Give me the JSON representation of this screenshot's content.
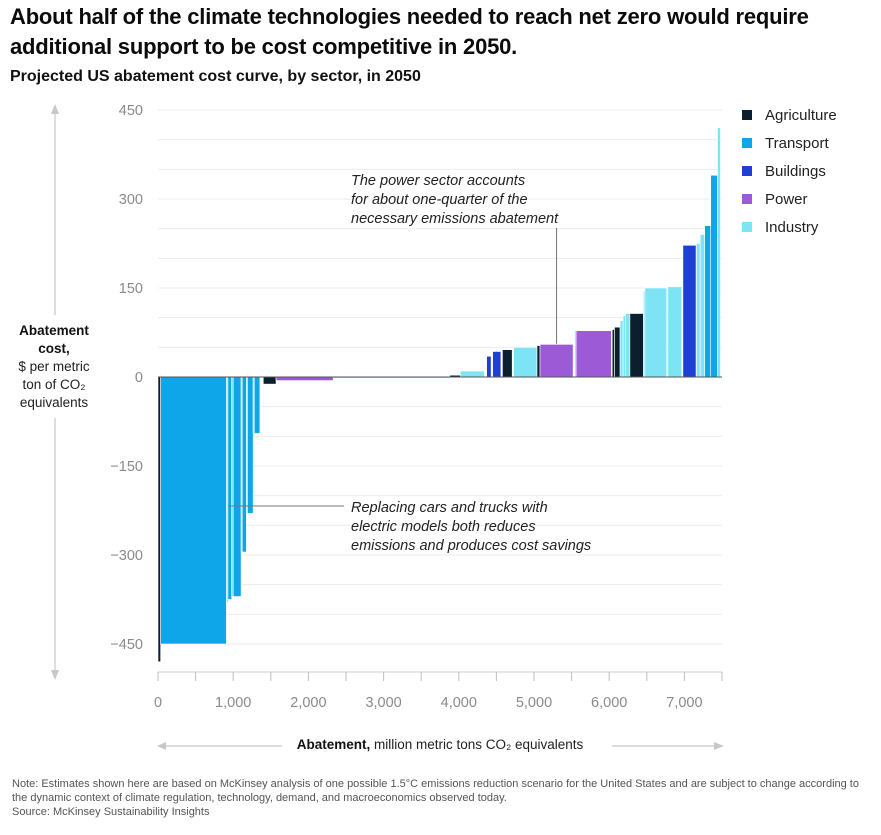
{
  "headline": "About half of the climate technologies needed to reach net zero would require additional support to be cost competitive in 2050.",
  "subtitle": "Projected US abatement cost curve, by sector, in 2050",
  "y_axis": {
    "title_bold": "Abatement cost,",
    "title_rest": "$ per metric ton of CO₂ equivalents"
  },
  "x_axis": {
    "title_bold": "Abatement,",
    "title_rest": " million metric tons CO₂ equivalents"
  },
  "note": "Note: Estimates shown here are based on McKinsey analysis of one possible 1.5°C emissions reduction scenario for the United States and are subject to change according to the dynamic context of climate regulation, technology, demand, and macroeconomics observed today.",
  "source": "Source: McKinsey Sustainability Insights",
  "colors": {
    "Agriculture": "#0b1f2e",
    "Transport": "#0ea5e9",
    "Buildings": "#1d3fd6",
    "Power": "#9c5ad6",
    "Industry": "#7de3f5"
  },
  "chart_data": {
    "type": "bar",
    "variant": "marginal-abatement-cost-curve",
    "xlim": [
      0,
      7500
    ],
    "ylim": [
      -500,
      450
    ],
    "y_ticks": [
      450,
      300,
      150,
      0,
      -150,
      -300,
      -450
    ],
    "x_ticks": [
      0,
      1000,
      2000,
      3000,
      4000,
      5000,
      6000,
      7000
    ],
    "x_tick_labels": [
      "0",
      "1,000",
      "2,000",
      "3,000",
      "4,000",
      "5,000",
      "6,000",
      "7,000"
    ],
    "y_tick_labels": [
      "450",
      "300",
      "150",
      "0",
      "−150",
      "−300",
      "−450"
    ],
    "grid": true,
    "legend": {
      "position": "top-right",
      "entries": [
        "Agriculture",
        "Transport",
        "Buildings",
        "Power",
        "Industry"
      ]
    },
    "bars": [
      {
        "sector": "Agriculture",
        "start": 0,
        "width": 35,
        "value": -480
      },
      {
        "sector": "Transport",
        "start": 35,
        "width": 875,
        "value": -450
      },
      {
        "sector": "Industry",
        "start": 910,
        "width": 20,
        "value": -380
      },
      {
        "sector": "Transport",
        "start": 930,
        "width": 50,
        "value": -375
      },
      {
        "sector": "Industry",
        "start": 980,
        "width": 20,
        "value": -370
      },
      {
        "sector": "Transport",
        "start": 1000,
        "width": 105,
        "value": -370
      },
      {
        "sector": "Industry",
        "start": 1105,
        "width": 15,
        "value": -295
      },
      {
        "sector": "Transport",
        "start": 1120,
        "width": 55,
        "value": -295
      },
      {
        "sector": "Industry",
        "start": 1175,
        "width": 15,
        "value": -230
      },
      {
        "sector": "Transport",
        "start": 1190,
        "width": 75,
        "value": -230
      },
      {
        "sector": "Industry",
        "start": 1265,
        "width": 15,
        "value": -95
      },
      {
        "sector": "Transport",
        "start": 1280,
        "width": 75,
        "value": -95
      },
      {
        "sector": "Agriculture",
        "start": 1400,
        "width": 170,
        "value": -12
      },
      {
        "sector": "Power",
        "start": 1570,
        "width": 760,
        "value": -6
      },
      {
        "sector": "Industry",
        "start": 2330,
        "width": 1550,
        "value": -2
      },
      {
        "sector": "Agriculture",
        "start": 3880,
        "width": 140,
        "value": 3
      },
      {
        "sector": "Industry",
        "start": 4020,
        "width": 320,
        "value": 10
      },
      {
        "sector": "Buildings",
        "start": 4370,
        "width": 60,
        "value": 35
      },
      {
        "sector": "Buildings",
        "start": 4450,
        "width": 110,
        "value": 43
      },
      {
        "sector": "Agriculture",
        "start": 4580,
        "width": 130,
        "value": 46
      },
      {
        "sector": "Industry",
        "start": 4730,
        "width": 310,
        "value": 50
      },
      {
        "sector": "Agriculture",
        "start": 5040,
        "width": 40,
        "value": 53
      },
      {
        "sector": "Power",
        "start": 5080,
        "width": 440,
        "value": 55
      },
      {
        "sector": "Industry",
        "start": 5540,
        "width": 20,
        "value": 78
      },
      {
        "sector": "Power",
        "start": 5560,
        "width": 470,
        "value": 78
      },
      {
        "sector": "Agriculture",
        "start": 6040,
        "width": 30,
        "value": 80
      },
      {
        "sector": "Agriculture",
        "start": 6070,
        "width": 75,
        "value": 84
      },
      {
        "sector": "Industry",
        "start": 6145,
        "width": 40,
        "value": 95
      },
      {
        "sector": "Industry",
        "start": 6185,
        "width": 30,
        "value": 103
      },
      {
        "sector": "Industry",
        "start": 6215,
        "width": 60,
        "value": 107
      },
      {
        "sector": "Agriculture",
        "start": 6275,
        "width": 180,
        "value": 107
      },
      {
        "sector": "Industry",
        "start": 6455,
        "width": 20,
        "value": 145
      },
      {
        "sector": "Industry",
        "start": 6475,
        "width": 290,
        "value": 150
      },
      {
        "sector": "Industry",
        "start": 6780,
        "width": 185,
        "value": 152
      },
      {
        "sector": "Buildings",
        "start": 6980,
        "width": 175,
        "value": 222
      },
      {
        "sector": "Industry",
        "start": 7160,
        "width": 50,
        "value": 225
      },
      {
        "sector": "Industry",
        "start": 7210,
        "width": 60,
        "value": 240
      },
      {
        "sector": "Transport",
        "start": 7270,
        "width": 80,
        "value": 255
      },
      {
        "sector": "Transport",
        "start": 7350,
        "width": 90,
        "value": 340
      },
      {
        "sector": "Industry",
        "start": 7440,
        "width": 40,
        "value": 420
      }
    ],
    "annotations": [
      {
        "text": [
          "The power sector accounts",
          "for about one-quarter of the",
          "necessary emissions abatement"
        ]
      },
      {
        "text": [
          "Replacing cars and trucks with",
          "electric models both reduces",
          "emissions and produces cost savings"
        ]
      }
    ]
  }
}
